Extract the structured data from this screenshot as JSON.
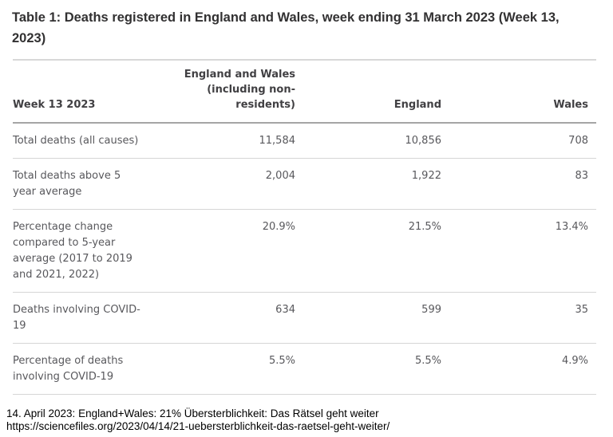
{
  "title": "Table 1: Deaths registered in England and Wales, week ending 31 March 2023 (Week 13,\n2023)",
  "table": {
    "columns": {
      "c1": "Week 13 2023",
      "c2": "England and Wales\n(including non-\nresidents)",
      "c3": "England",
      "c4": "Wales"
    },
    "rows": [
      {
        "label": "Total deaths (all causes)",
        "ew": "11,584",
        "england": "10,856",
        "wales": "708"
      },
      {
        "label": "Total deaths above 5\nyear average",
        "ew": "2,004",
        "england": "1,922",
        "wales": "83"
      },
      {
        "label": "Percentage change\ncompared to 5-year\naverage (2017 to 2019\nand 2021, 2022)",
        "ew": "20.9%",
        "england": "21.5%",
        "wales": "13.4%"
      },
      {
        "label": "Deaths involving COVID-\n19",
        "ew": "634",
        "england": "599",
        "wales": "35"
      },
      {
        "label": "Percentage of deaths\ninvolving COVID-19",
        "ew": "5.5%",
        "england": "5.5%",
        "wales": "4.9%"
      }
    ]
  },
  "footer": {
    "caption": "14. April 2023: England+Wales: 21% Übersterblichkeit: Das Rätsel geht weiter",
    "url": "https://sciencefiles.org/2023/04/14/21-uebersterblichkeit-das-raetsel-geht-weiter/"
  },
  "colors": {
    "title_text": "#323132",
    "header_text": "#414043",
    "body_text": "#58585c",
    "header_rule": "#a5a5a5",
    "row_rule": "#d6d6d6",
    "top_rule": "#d8d8d8",
    "footer_text": "#000000",
    "background": "#ffffff"
  }
}
